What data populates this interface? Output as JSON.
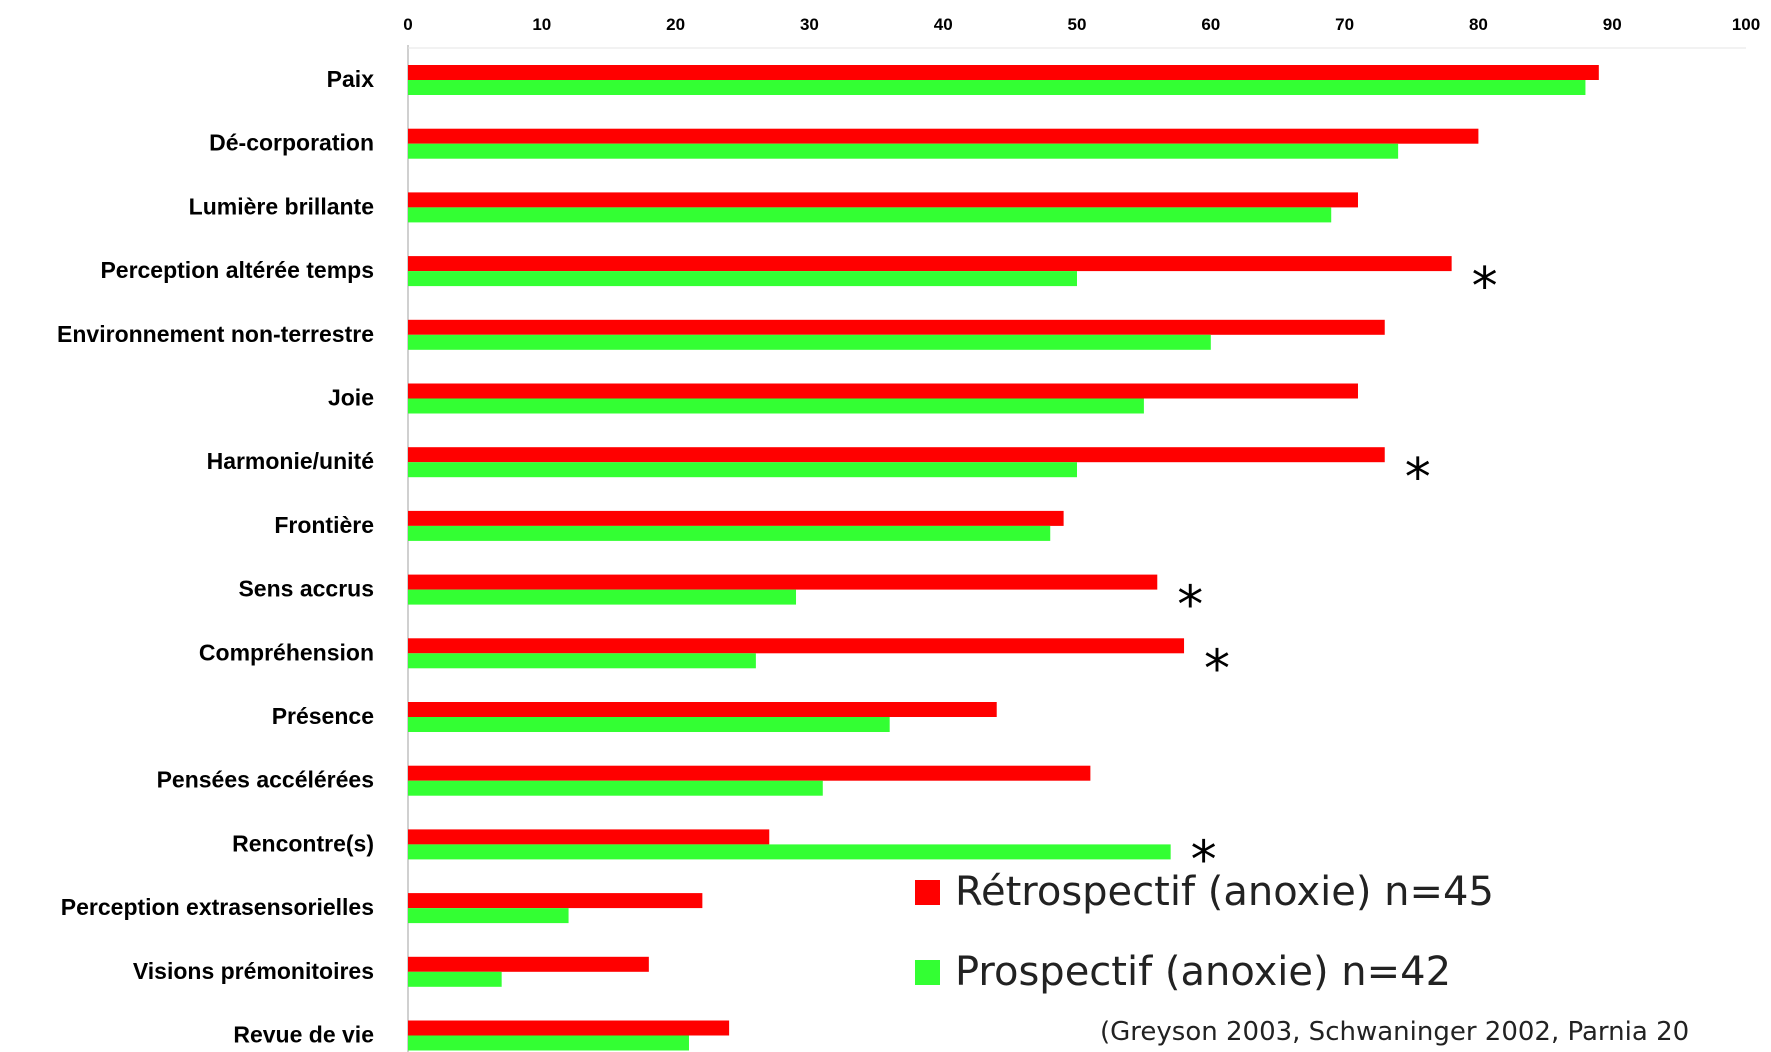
{
  "chart_data": {
    "type": "bar",
    "orientation": "horizontal",
    "categories": [
      "Paix",
      "Dé-corporation",
      "Lumière brillante",
      "Perception altérée temps",
      "Environnement non-terrestre",
      "Joie",
      "Harmonie/unité",
      "Frontière",
      "Sens accrus",
      "Compréhension",
      "Présence",
      "Pensées accélérées",
      "Rencontre(s)",
      "Perception extrasensorielles",
      "Visions prémonitoires",
      "Revue de vie"
    ],
    "series": [
      {
        "name": "Rétrospectif (anoxie) n=45",
        "color": "#ff0000",
        "values": [
          89,
          80,
          71,
          78,
          73,
          71,
          73,
          49,
          56,
          58,
          44,
          51,
          27,
          22,
          18,
          24
        ]
      },
      {
        "name": "Prospectif (anoxie) n=42",
        "color": "#33ff33",
        "values": [
          88,
          74,
          69,
          50,
          60,
          55,
          50,
          48,
          29,
          26,
          36,
          31,
          57,
          12,
          7,
          21
        ]
      }
    ],
    "xlim": [
      0,
      100
    ],
    "xticks": [
      "0",
      "10",
      "20",
      "30",
      "40",
      "50",
      "60",
      "70",
      "80",
      "90",
      "100"
    ],
    "axis_position": "top",
    "grid": false,
    "legend_position": "bottom-right",
    "annotations": [
      {
        "text": "*",
        "category_index": 3
      },
      {
        "text": "*",
        "category_index": 6
      },
      {
        "text": "*",
        "category_index": 8
      },
      {
        "text": "*",
        "category_index": 9
      },
      {
        "text": "*",
        "category_index": 12
      }
    ],
    "citation": "(Greyson 2003, Schwaninger 2002, Parnia 20"
  }
}
